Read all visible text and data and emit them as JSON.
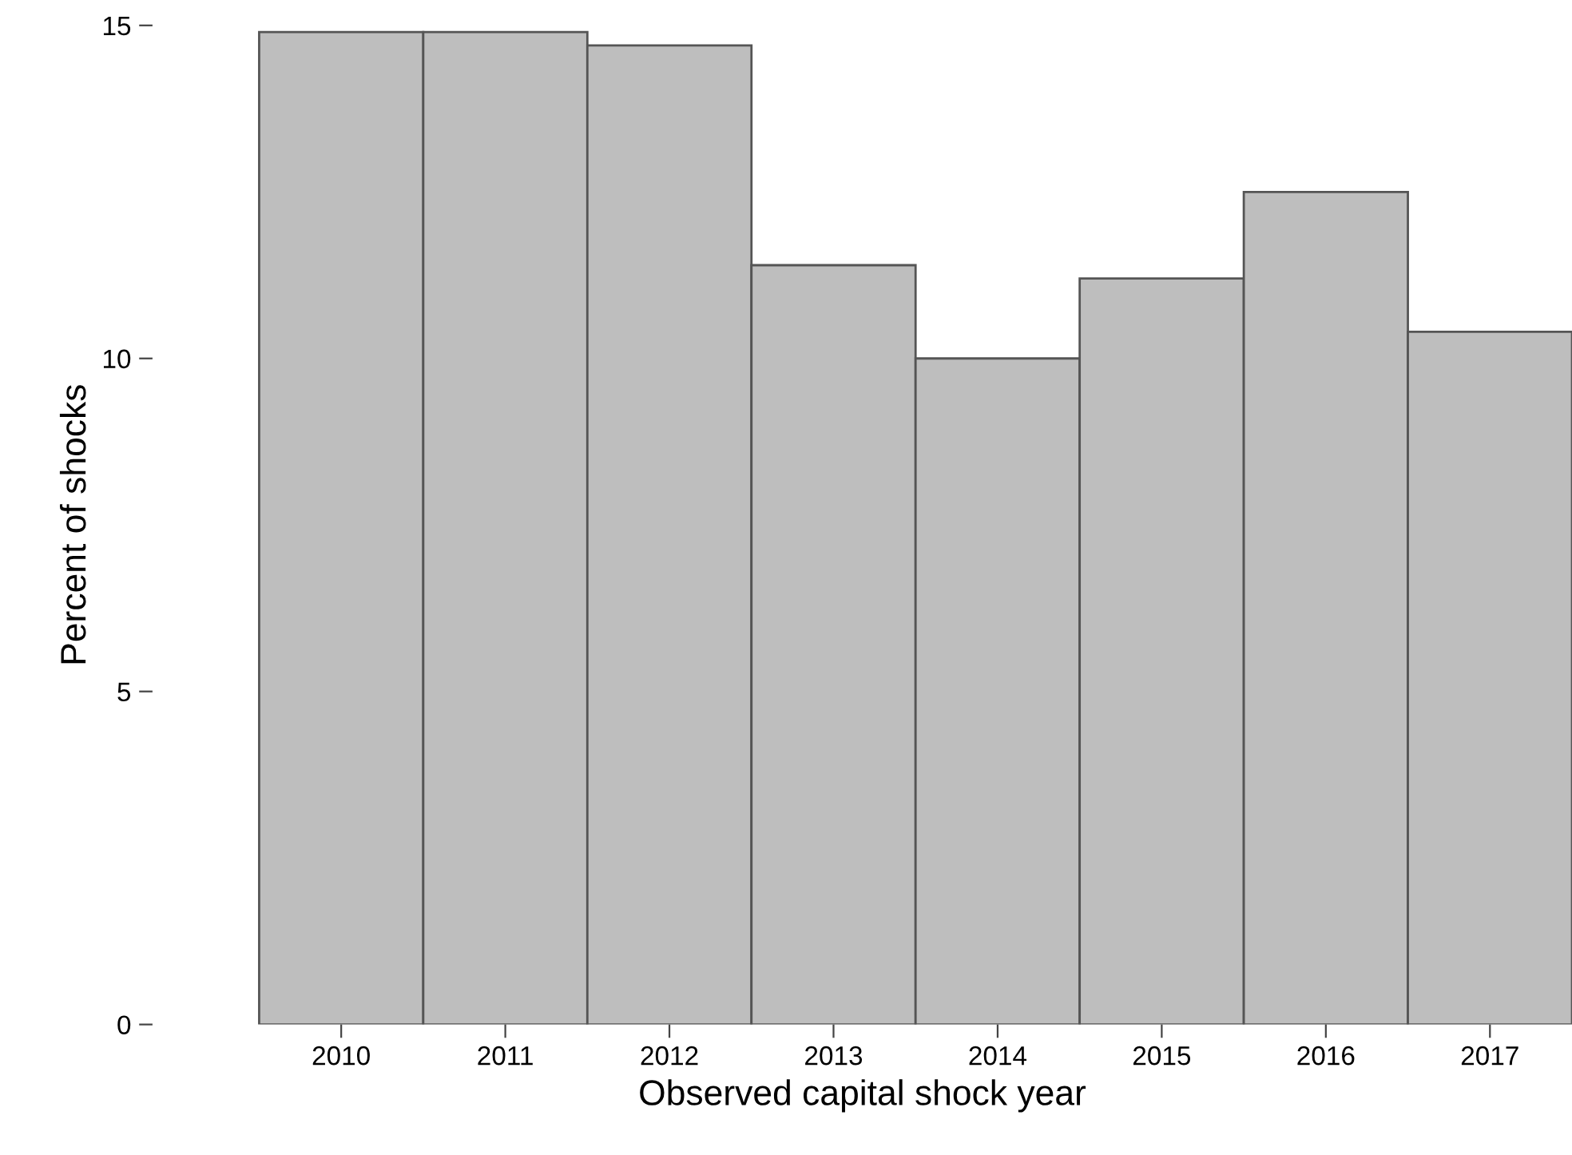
{
  "chart_data": {
    "type": "bar",
    "xlabel": "Observed capital shock year",
    "ylabel": "Percent of shocks",
    "categories": [
      "2010",
      "2011",
      "2012",
      "2013",
      "2014",
      "2015",
      "2016",
      "2017"
    ],
    "values": [
      14.9,
      14.9,
      14.7,
      11.4,
      10.0,
      11.2,
      12.5,
      10.4
    ],
    "color": "#bebebe",
    "ylim": [
      0,
      15
    ],
    "yticks": [
      0,
      5,
      10,
      15
    ],
    "grid": false,
    "legend": false
  }
}
